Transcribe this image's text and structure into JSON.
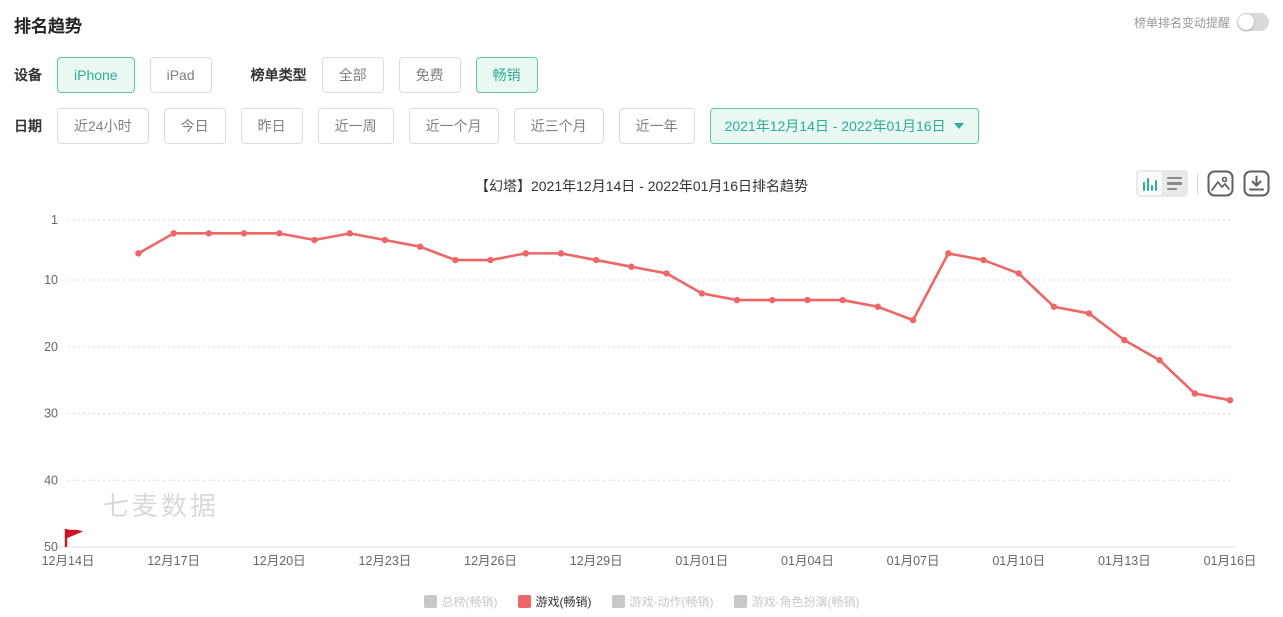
{
  "header": {
    "title": "排名趋势",
    "alert_label": "榜单排名变动提醒",
    "alert_toggle_state": "off"
  },
  "filters": {
    "device_label": "设备",
    "device_options": [
      {
        "label": "iPhone",
        "selected": true
      },
      {
        "label": "iPad",
        "selected": false
      }
    ],
    "chart_type_label": "榜单类型",
    "chart_type_options": [
      {
        "label": "全部",
        "selected": false
      },
      {
        "label": "免费",
        "selected": false
      },
      {
        "label": "畅销",
        "selected": true
      }
    ],
    "date_label": "日期",
    "date_options": [
      {
        "label": "近24小时",
        "selected": false
      },
      {
        "label": "今日",
        "selected": false
      },
      {
        "label": "昨日",
        "selected": false
      },
      {
        "label": "近一周",
        "selected": false
      },
      {
        "label": "近一个月",
        "selected": false
      },
      {
        "label": "近三个月",
        "selected": false
      },
      {
        "label": "近一年",
        "selected": false
      }
    ],
    "date_range_value": "2021年12月14日 - 2022年01月16日"
  },
  "chart_header": {
    "title": "【幻塔】2021年12月14日 - 2022年01月16日排名趋势",
    "tools": [
      "bar-chart-view",
      "list-view",
      "save-image",
      "download"
    ]
  },
  "watermark": "七麦数据",
  "colors": {
    "accent_green": "#2fad8e",
    "accent_green_border": "#62c5a6",
    "accent_green_bg": "#e9f8f3",
    "line_red": "#ee6666",
    "flag_red": "#cf1322",
    "grid_gray": "#d9d9d9",
    "axis_text": "#666666",
    "inactive_gray": "#c8c8c8"
  },
  "chart_data": {
    "type": "line",
    "title": "【幻塔】2021年12月14日 - 2022年01月16日排名趋势",
    "series_name": "游戏(畅销)",
    "line_color": "#ee6666",
    "y_inverted": true,
    "ylabel": "",
    "xlabel": "",
    "y_ticks": [
      1,
      10,
      20,
      30,
      40,
      50
    ],
    "y_range": [
      1,
      50
    ],
    "grid": "dotted-horizontal",
    "legend_position": "bottom",
    "x_axis_dates": [
      "12月14日",
      "12月15日",
      "12月16日",
      "12月17日",
      "12月18日",
      "12月19日",
      "12月20日",
      "12月21日",
      "12月22日",
      "12月23日",
      "12月24日",
      "12月25日",
      "12月26日",
      "12月27日",
      "12月28日",
      "12月29日",
      "12月30日",
      "12月31日",
      "01月01日",
      "01月02日",
      "01月03日",
      "01月04日",
      "01月05日",
      "01月06日",
      "01月07日",
      "01月08日",
      "01月09日",
      "01月10日",
      "01月11日",
      "01月12日",
      "01月13日",
      "01月14日",
      "01月15日",
      "01月16日"
    ],
    "x_tick_labels": [
      "12月14日",
      "12月17日",
      "12月20日",
      "12月23日",
      "12月26日",
      "12月29日",
      "01月01日",
      "01月04日",
      "01月07日",
      "01月10日",
      "01月13日",
      "01月16日"
    ],
    "x_tick_every_days": 3,
    "flag_marker_date": "12月14日",
    "points": [
      {
        "date": "12月16日",
        "rank": 6
      },
      {
        "date": "12月17日",
        "rank": 3
      },
      {
        "date": "12月18日",
        "rank": 3
      },
      {
        "date": "12月19日",
        "rank": 3
      },
      {
        "date": "12月20日",
        "rank": 3
      },
      {
        "date": "12月21日",
        "rank": 4
      },
      {
        "date": "12月22日",
        "rank": 3
      },
      {
        "date": "12月23日",
        "rank": 4
      },
      {
        "date": "12月24日",
        "rank": 5
      },
      {
        "date": "12月25日",
        "rank": 7
      },
      {
        "date": "12月26日",
        "rank": 7
      },
      {
        "date": "12月27日",
        "rank": 6
      },
      {
        "date": "12月28日",
        "rank": 6
      },
      {
        "date": "12月29日",
        "rank": 7
      },
      {
        "date": "12月30日",
        "rank": 8
      },
      {
        "date": "12月31日",
        "rank": 9
      },
      {
        "date": "01月01日",
        "rank": 12
      },
      {
        "date": "01月02日",
        "rank": 13
      },
      {
        "date": "01月03日",
        "rank": 13
      },
      {
        "date": "01月04日",
        "rank": 13
      },
      {
        "date": "01月05日",
        "rank": 13
      },
      {
        "date": "01月06日",
        "rank": 14
      },
      {
        "date": "01月07日",
        "rank": 16
      },
      {
        "date": "01月08日",
        "rank": 6
      },
      {
        "date": "01月09日",
        "rank": 7
      },
      {
        "date": "01月10日",
        "rank": 9
      },
      {
        "date": "01月11日",
        "rank": 14
      },
      {
        "date": "01月12日",
        "rank": 15
      },
      {
        "date": "01月13日",
        "rank": 19
      },
      {
        "date": "01月14日",
        "rank": 22
      },
      {
        "date": "01月15日",
        "rank": 27
      },
      {
        "date": "01月16日",
        "rank": 28
      }
    ]
  },
  "legend": {
    "items": [
      {
        "label": "总榜(畅销)",
        "color": "#c8c8c8",
        "active": false
      },
      {
        "label": "游戏(畅销)",
        "color": "#ee6666",
        "active": true
      },
      {
        "label": "游戏-动作(畅销)",
        "color": "#c8c8c8",
        "active": false
      },
      {
        "label": "游戏-角色扮演(畅销)",
        "color": "#c8c8c8",
        "active": false
      }
    ]
  }
}
